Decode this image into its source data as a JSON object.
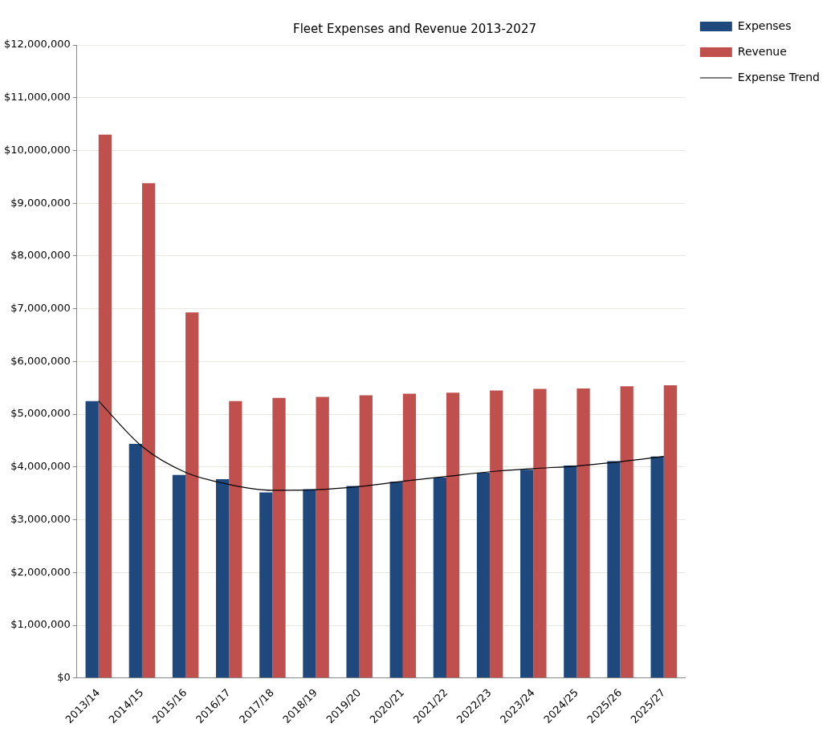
{
  "chart_data": {
    "type": "bar",
    "title": "Fleet Expenses and Revenue 2013-2027",
    "categories": [
      "2013/14",
      "2014/15",
      "2015/16",
      "2016/17",
      "2017/18",
      "2018/19",
      "2019/20",
      "2020/21",
      "2021/22",
      "2022/23",
      "2023/24",
      "2024/25",
      "2025/26",
      "2025/27"
    ],
    "series": [
      {
        "name": "Expenses",
        "color": "#1f497d",
        "values": [
          5250000,
          4440000,
          3850000,
          3770000,
          3520000,
          3580000,
          3640000,
          3720000,
          3800000,
          3890000,
          3950000,
          4030000,
          4110000,
          4200000
        ]
      },
      {
        "name": "Revenue",
        "color": "#c0504d",
        "values": [
          10300000,
          9380000,
          6930000,
          5250000,
          5310000,
          5330000,
          5360000,
          5390000,
          5410000,
          5450000,
          5480000,
          5490000,
          5530000,
          5550000
        ]
      },
      {
        "name": "Expense Trend",
        "type": "line",
        "color": "#000000",
        "marker": "none",
        "values": [
          5250000,
          4390000,
          3900000,
          3670000,
          3560000,
          3570000,
          3630000,
          3730000,
          3820000,
          3910000,
          3970000,
          4020000,
          4100000,
          4200000
        ]
      }
    ],
    "ylim": [
      0,
      12000000
    ],
    "yticks": [
      {
        "value": 0,
        "label": "$0"
      },
      {
        "value": 1000000,
        "label": "$1,000,000"
      },
      {
        "value": 2000000,
        "label": "$2,000,000"
      },
      {
        "value": 3000000,
        "label": "$3,000,000"
      },
      {
        "value": 4000000,
        "label": "$4,000,000"
      },
      {
        "value": 5000000,
        "label": "$5,000,000"
      },
      {
        "value": 6000000,
        "label": "$6,000,000"
      },
      {
        "value": 7000000,
        "label": "$7,000,000"
      },
      {
        "value": 8000000,
        "label": "$8,000,000"
      },
      {
        "value": 9000000,
        "label": "$9,000,000"
      },
      {
        "value": 10000000,
        "label": "$10,000,000"
      },
      {
        "value": 11000000,
        "label": "$11,000,000"
      },
      {
        "value": 12000000,
        "label": "$12,000,000"
      }
    ],
    "grid": "y",
    "legend": "right"
  }
}
